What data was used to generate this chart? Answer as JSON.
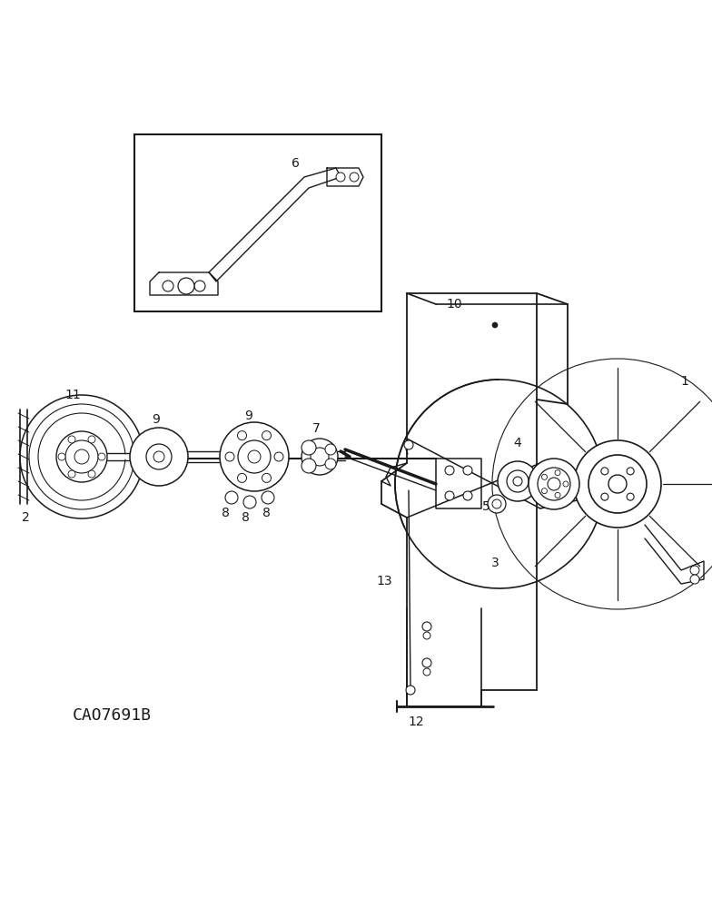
{
  "background_color": "#ffffff",
  "line_color": "#1a1a1a",
  "image_code": "CAO7691B",
  "fig_w": 7.84,
  "fig_h": 10.0,
  "dpi": 100
}
